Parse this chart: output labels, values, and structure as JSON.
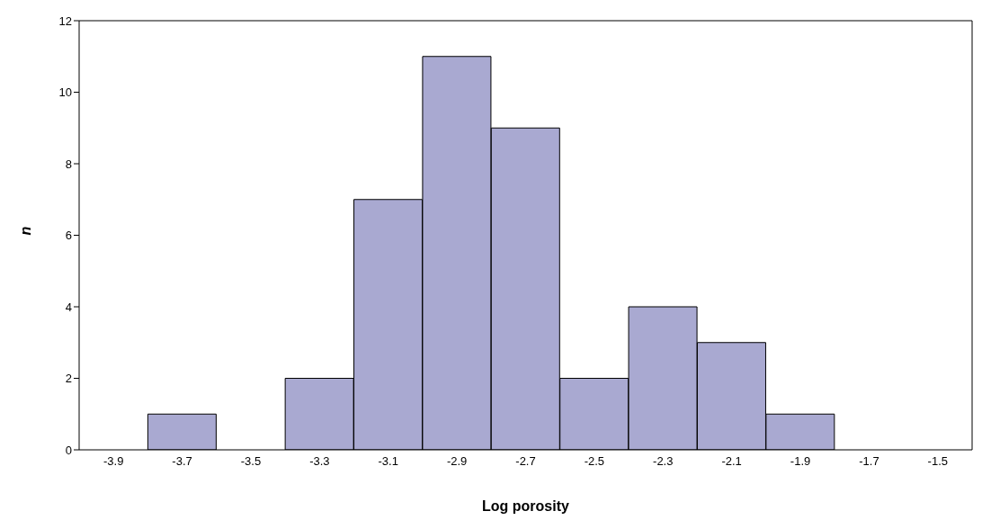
{
  "chart_data": {
    "type": "bar",
    "xlabel": "Log porosity",
    "ylabel": "n",
    "categories": [
      "-3.9",
      "-3.7",
      "-3.5",
      "-3.3",
      "-3.1",
      "-2.9",
      "-2.7",
      "-2.5",
      "-2.3",
      "-2.1",
      "-1.9",
      "-1.7",
      "-1.5"
    ],
    "values": [
      0,
      1,
      0,
      2,
      7,
      11,
      9,
      2,
      4,
      3,
      1,
      0,
      0
    ],
    "color": "#a9a9d1",
    "ylim": [
      0,
      12
    ],
    "yticks": [
      0,
      2,
      4,
      6,
      8,
      10,
      12
    ],
    "grid": false,
    "legend": false
  }
}
